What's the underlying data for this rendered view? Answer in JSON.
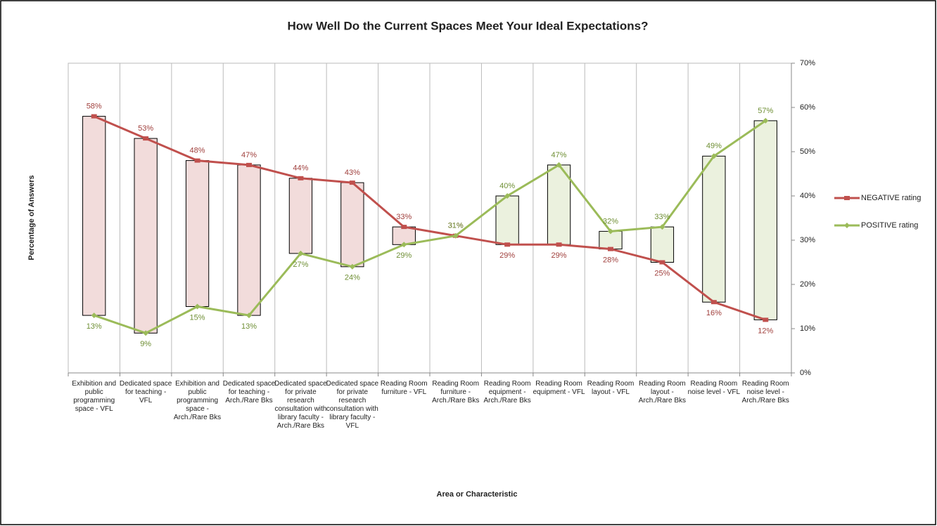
{
  "chart_data": {
    "type": "line",
    "title": "How Well Do the Current Spaces Meet Your Ideal Expectations?",
    "y_label": "Percentage of Answers",
    "x_label": "Area or Characteristic",
    "categories": [
      "Exhibition and public programming space - VFL",
      "Dedicated space for teaching - VFL",
      "Exhibition and public programming space - Arch./Rare Bks",
      "Dedicated space for teaching - Arch./Rare Bks",
      "Dedicated space for private research consultation with library faculty - Arch./Rare Bks",
      "Dedicated space for private research consultation with library faculty - VFL",
      "Reading Room furniture - VFL",
      "Reading Room furniture - Arch./Rare Bks",
      "Reading Room equipment - Arch./Rare Bks",
      "Reading Room equipment - VFL",
      "Reading Room layout - VFL",
      "Reading Room layout - Arch./Rare Bks",
      "Reading Room noise level - VFL",
      "Reading Room noise level - Arch./Rare Bks"
    ],
    "series": [
      {
        "name": "NEGATIVE rating",
        "color": "#c0504d",
        "values": [
          58,
          53,
          48,
          47,
          44,
          43,
          33,
          31,
          29,
          29,
          28,
          25,
          16,
          12
        ],
        "value_labels": [
          "58%",
          "53%",
          "48%",
          "47%",
          "44%",
          "43%",
          "33%",
          "31%",
          "29%",
          "29%",
          "28%",
          "25%",
          "16%",
          "12%"
        ]
      },
      {
        "name": "POSITIVE rating",
        "color": "#9bbb59",
        "values": [
          13,
          9,
          15,
          13,
          27,
          24,
          29,
          31,
          40,
          47,
          32,
          33,
          49,
          57
        ],
        "value_labels": [
          "13%",
          "9%",
          "15%",
          "13%",
          "27%",
          "24%",
          "29%",
          "31%",
          "40%",
          "47%",
          "32%",
          "33%",
          "49%",
          "57%"
        ]
      }
    ],
    "down_bar_color": "#f2dcdb",
    "up_bar_color": "#ebf1de",
    "ylim": [
      0,
      70
    ],
    "yticks": [
      {
        "value": 0,
        "label": "0%"
      },
      {
        "value": 10,
        "label": "10%"
      },
      {
        "value": 20,
        "label": "20%"
      },
      {
        "value": 30,
        "label": "30%"
      },
      {
        "value": 40,
        "label": "40%"
      },
      {
        "value": 50,
        "label": "50%"
      },
      {
        "value": 60,
        "label": "60%"
      },
      {
        "value": 70,
        "label": "70%"
      }
    ],
    "y_axis_side": "right",
    "legend": "right"
  }
}
